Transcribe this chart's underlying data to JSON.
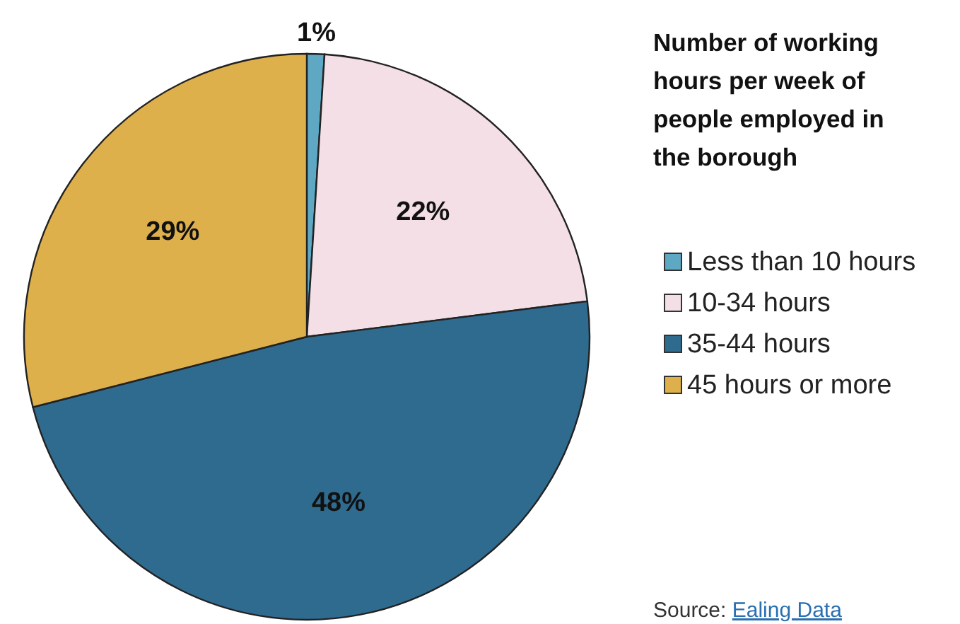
{
  "chart_data": {
    "type": "pie",
    "title": "Number of working hours per week of people employed in the borough",
    "categories": [
      "Less than 10 hours",
      "10-34 hours",
      "35-44 hours",
      "45 hours or more"
    ],
    "values": [
      1,
      22,
      48,
      29
    ],
    "colors": [
      "#5fa8c4",
      "#f3dfe5",
      "#2f6b8f",
      "#deb04c"
    ],
    "value_labels": [
      "1%",
      "22%",
      "48%",
      "29%"
    ],
    "legend": "right",
    "annotations": [
      "Source: Ealing Data"
    ]
  }
}
